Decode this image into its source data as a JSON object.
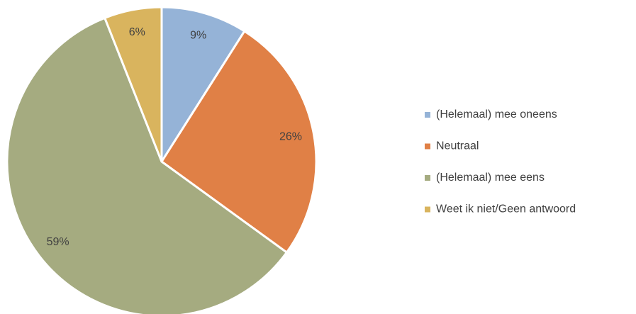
{
  "chart_data": {
    "type": "pie",
    "categories": [
      "(Helemaal) mee oneens",
      "Neutraal",
      "(Helemaal) mee eens",
      "Weet ik niet/Geen antwoord"
    ],
    "values": [
      9,
      26,
      59,
      6
    ],
    "value_labels": [
      "9%",
      "26%",
      "59%",
      "6%"
    ],
    "colors": [
      "#95b3d7",
      "#e08046",
      "#a5ab80",
      "#d9b45e"
    ],
    "legend": "right"
  }
}
